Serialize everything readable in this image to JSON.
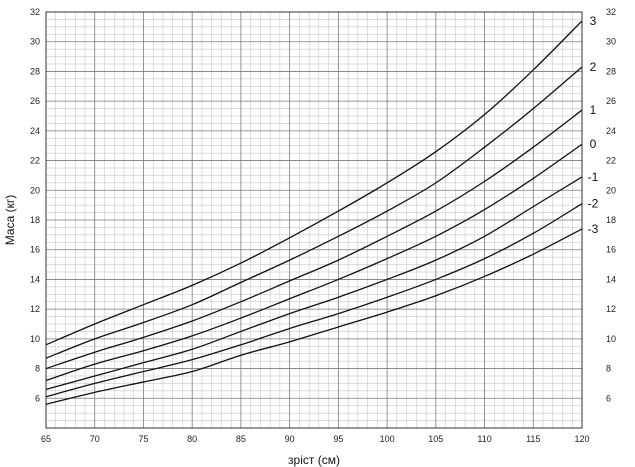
{
  "chart_data": {
    "type": "line",
    "xlabel": "зріст (см)",
    "ylabel": "Маса (кг)",
    "xlim": [
      65,
      120
    ],
    "ylim": [
      4,
      32
    ],
    "x_ticks": [
      65,
      70,
      75,
      80,
      85,
      90,
      95,
      100,
      105,
      110,
      115,
      120
    ],
    "y_ticks_left": [
      6,
      8,
      10,
      12,
      14,
      16,
      18,
      20,
      22,
      24,
      26,
      28,
      30,
      32
    ],
    "y_ticks_right": [
      6,
      8,
      10,
      12,
      14,
      16,
      18,
      20,
      22,
      24,
      26,
      28,
      30,
      32
    ],
    "grid": true,
    "x": [
      65,
      70,
      75,
      80,
      85,
      90,
      95,
      100,
      105,
      110,
      115,
      120
    ],
    "series": [
      {
        "name": "3",
        "values": [
          9.6,
          11.0,
          12.3,
          13.6,
          15.1,
          16.8,
          18.6,
          20.5,
          22.6,
          25.1,
          28.1,
          31.4
        ]
      },
      {
        "name": "2",
        "values": [
          8.7,
          10.0,
          11.1,
          12.3,
          13.8,
          15.3,
          16.9,
          18.6,
          20.5,
          22.9,
          25.5,
          28.3
        ]
      },
      {
        "name": "1",
        "values": [
          8.0,
          9.1,
          10.1,
          11.2,
          12.5,
          13.9,
          15.3,
          16.9,
          18.6,
          20.6,
          22.9,
          25.4
        ]
      },
      {
        "name": "0",
        "values": [
          7.2,
          8.3,
          9.2,
          10.2,
          11.4,
          12.7,
          14.0,
          15.4,
          16.9,
          18.7,
          20.8,
          23.1
        ]
      },
      {
        "name": "-1",
        "values": [
          6.6,
          7.5,
          8.4,
          9.3,
          10.5,
          11.7,
          12.8,
          14.0,
          15.3,
          16.9,
          18.9,
          20.9
        ]
      },
      {
        "name": "-2",
        "values": [
          6.1,
          7.0,
          7.8,
          8.6,
          9.6,
          10.7,
          11.7,
          12.8,
          14.0,
          15.4,
          17.1,
          19.1
        ]
      },
      {
        "name": "-3",
        "values": [
          5.6,
          6.4,
          7.1,
          7.8,
          8.9,
          9.8,
          10.8,
          11.8,
          12.9,
          14.2,
          15.7,
          17.4
        ]
      }
    ]
  }
}
